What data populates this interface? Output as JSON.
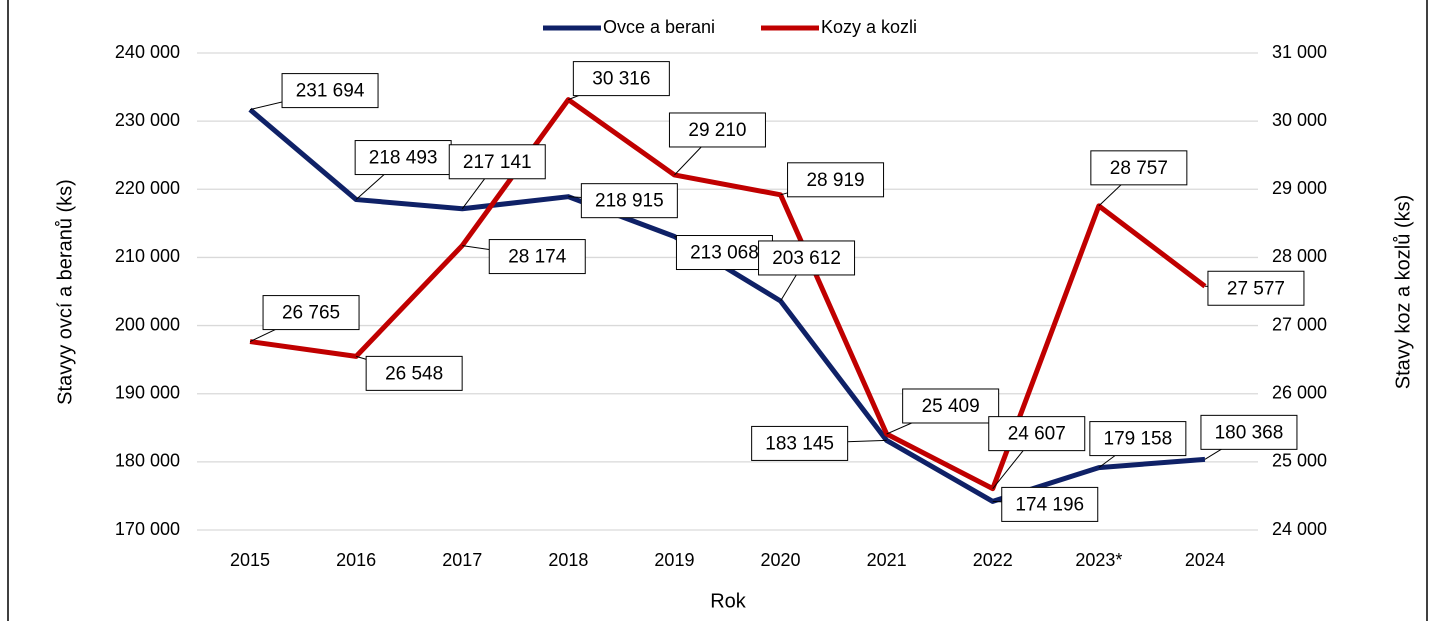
{
  "chart_data": {
    "type": "line",
    "x_label": "Rok",
    "y_label": "Stavyy ovcí a beranů (ks)",
    "y2_label": "Stavy koz a kozlů (ks)",
    "categories": [
      "2015",
      "2016",
      "2017",
      "2018",
      "2019",
      "2020",
      "2021",
      "2022",
      "2023*",
      "2024"
    ],
    "series": [
      {
        "name": "Ovce a berani",
        "color": "#0f2167",
        "axis": "y",
        "values": [
          231694,
          218493,
          217141,
          218915,
          213068,
          203612,
          183145,
          174196,
          179158,
          180368
        ],
        "value_labels": [
          "231 694",
          "218 493",
          "217 141",
          "218 915",
          "213 068",
          "203 612",
          "183 145",
          "174 196",
          "179 158",
          "180 368"
        ]
      },
      {
        "name": "Kozy a kozli",
        "color": "#c00000",
        "axis": "y2",
        "values": [
          26765,
          26548,
          28174,
          30316,
          29210,
          28919,
          25409,
          24607,
          28757,
          27577
        ],
        "value_labels": [
          "26 765",
          "26 548",
          "28 174",
          "30 316",
          "29 210",
          "28 919",
          "25 409",
          "24 607",
          "28 757",
          "27 577"
        ]
      }
    ],
    "ylim": [
      170000,
      240000
    ],
    "yticks": [
      {
        "value": 170000,
        "label": "170 000"
      },
      {
        "value": 180000,
        "label": "180 000"
      },
      {
        "value": 190000,
        "label": "190 000"
      },
      {
        "value": 200000,
        "label": "200 000"
      },
      {
        "value": 210000,
        "label": "210 000"
      },
      {
        "value": 220000,
        "label": "220 000"
      },
      {
        "value": 230000,
        "label": "230 000"
      },
      {
        "value": 240000,
        "label": "240 000"
      }
    ],
    "y2lim": [
      24000,
      31000
    ],
    "y2ticks": [
      {
        "value": 24000,
        "label": "24 000"
      },
      {
        "value": 25000,
        "label": "25 000"
      },
      {
        "value": 26000,
        "label": "26 000"
      },
      {
        "value": 27000,
        "label": "27 000"
      },
      {
        "value": 28000,
        "label": "28 000"
      },
      {
        "value": 29000,
        "label": "29 000"
      },
      {
        "value": 30000,
        "label": "30 000"
      },
      {
        "value": 31000,
        "label": "31 000"
      }
    ],
    "grid": true,
    "legend": "top"
  }
}
